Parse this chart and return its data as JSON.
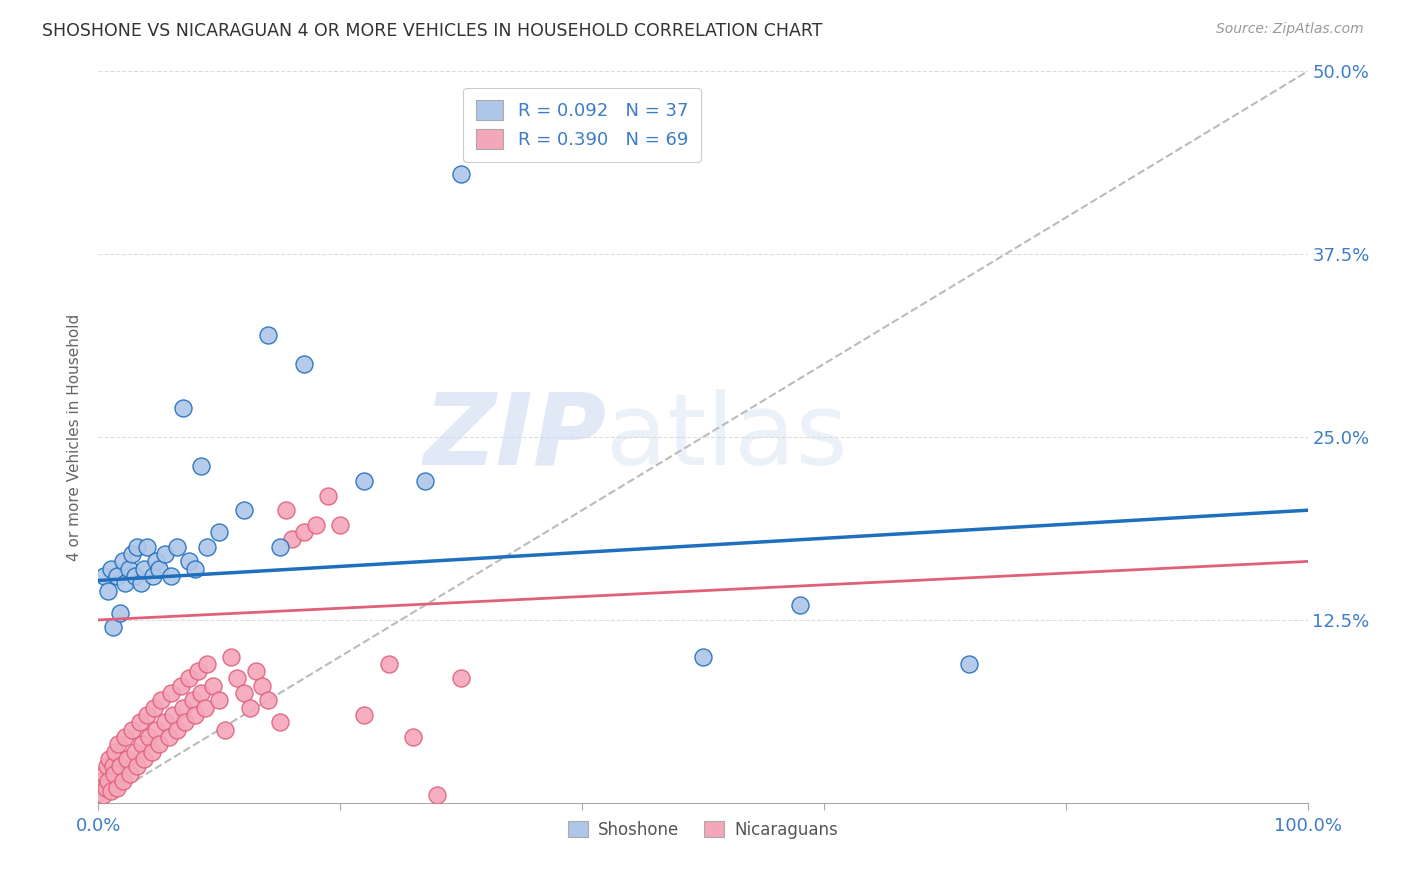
{
  "title": "SHOSHONE VS NICARAGUAN 4 OR MORE VEHICLES IN HOUSEHOLD CORRELATION CHART",
  "source": "Source: ZipAtlas.com",
  "ylabel": "4 or more Vehicles in Household",
  "ytick_labels": [
    "",
    "12.5%",
    "25.0%",
    "37.5%",
    "50.0%"
  ],
  "ytick_values": [
    0.0,
    0.125,
    0.25,
    0.375,
    0.5
  ],
  "watermark_zip": "ZIP",
  "watermark_atlas": "atlas",
  "legend_shoshone": "R = 0.092   N = 37",
  "legend_nicaraguan": "R = 0.390   N = 69",
  "legend_label1": "Shoshone",
  "legend_label2": "Nicaraguans",
  "shoshone_color": "#aec6e8",
  "nicaraguan_color": "#f4a7b9",
  "shoshone_edge_color": "#1f6fbf",
  "nicaraguan_edge_color": "#e0607a",
  "shoshone_line_color": "#1f6fbf",
  "nicaraguan_line_color": "#e0607a",
  "diagonal_color": "#bbbbbb",
  "shoshone_x": [
    0.005,
    0.008,
    0.01,
    0.012,
    0.015,
    0.018,
    0.02,
    0.022,
    0.025,
    0.028,
    0.03,
    0.032,
    0.035,
    0.038,
    0.04,
    0.045,
    0.048,
    0.05,
    0.055,
    0.06,
    0.065,
    0.07,
    0.075,
    0.08,
    0.085,
    0.09,
    0.1,
    0.12,
    0.14,
    0.15,
    0.17,
    0.22,
    0.27,
    0.5,
    0.58,
    0.72,
    0.3
  ],
  "shoshone_y": [
    0.155,
    0.145,
    0.16,
    0.12,
    0.155,
    0.13,
    0.165,
    0.15,
    0.16,
    0.17,
    0.155,
    0.175,
    0.15,
    0.16,
    0.175,
    0.155,
    0.165,
    0.16,
    0.17,
    0.155,
    0.175,
    0.27,
    0.165,
    0.16,
    0.23,
    0.175,
    0.185,
    0.2,
    0.32,
    0.175,
    0.3,
    0.22,
    0.22,
    0.1,
    0.135,
    0.095,
    0.43
  ],
  "nicaraguan_x": [
    0.002,
    0.003,
    0.004,
    0.005,
    0.006,
    0.007,
    0.008,
    0.009,
    0.01,
    0.012,
    0.013,
    0.014,
    0.015,
    0.016,
    0.018,
    0.02,
    0.022,
    0.024,
    0.026,
    0.028,
    0.03,
    0.032,
    0.034,
    0.036,
    0.038,
    0.04,
    0.042,
    0.044,
    0.046,
    0.048,
    0.05,
    0.052,
    0.055,
    0.058,
    0.06,
    0.062,
    0.065,
    0.068,
    0.07,
    0.072,
    0.075,
    0.078,
    0.08,
    0.082,
    0.085,
    0.088,
    0.09,
    0.095,
    0.1,
    0.105,
    0.11,
    0.115,
    0.12,
    0.125,
    0.13,
    0.135,
    0.14,
    0.15,
    0.155,
    0.16,
    0.17,
    0.18,
    0.19,
    0.2,
    0.22,
    0.24,
    0.26,
    0.28,
    0.3
  ],
  "nicaraguan_y": [
    0.01,
    0.015,
    0.005,
    0.02,
    0.01,
    0.025,
    0.015,
    0.03,
    0.008,
    0.025,
    0.02,
    0.035,
    0.01,
    0.04,
    0.025,
    0.015,
    0.045,
    0.03,
    0.02,
    0.05,
    0.035,
    0.025,
    0.055,
    0.04,
    0.03,
    0.06,
    0.045,
    0.035,
    0.065,
    0.05,
    0.04,
    0.07,
    0.055,
    0.045,
    0.075,
    0.06,
    0.05,
    0.08,
    0.065,
    0.055,
    0.085,
    0.07,
    0.06,
    0.09,
    0.075,
    0.065,
    0.095,
    0.08,
    0.07,
    0.05,
    0.1,
    0.085,
    0.075,
    0.065,
    0.09,
    0.08,
    0.07,
    0.055,
    0.2,
    0.18,
    0.185,
    0.19,
    0.21,
    0.19,
    0.06,
    0.095,
    0.045,
    0.005,
    0.085
  ],
  "shoshone_trendline_x": [
    0.0,
    1.0
  ],
  "shoshone_trendline_y": [
    0.152,
    0.2
  ],
  "nicaraguan_trendline_x": [
    0.0,
    1.0
  ],
  "nicaraguan_trendline_y": [
    0.125,
    0.165
  ],
  "xlim": [
    0.0,
    1.0
  ],
  "ylim": [
    0.0,
    0.5
  ],
  "background_color": "#ffffff",
  "grid_color": "#dddddd"
}
